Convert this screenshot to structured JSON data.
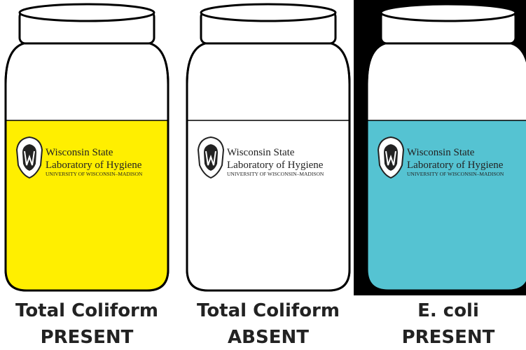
{
  "jars": [
    {
      "liquid_color": "#ffef00",
      "logo": {
        "line1": "Wisconsin State",
        "line2": "Laboratory of Hygiene",
        "line3": "UNIVERSITY OF WISCONSIN–MADISON"
      },
      "caption": [
        "Total Coliform",
        "PRESENT"
      ]
    },
    {
      "liquid_color": "#ffffff",
      "logo": {
        "line1": "Wisconsin State",
        "line2": "Laboratory of Hygiene",
        "line3": "UNIVERSITY OF WISCONSIN–MADISON"
      },
      "caption": [
        "Total Coliform",
        "ABSENT"
      ]
    },
    {
      "liquid_color": "#55c3d2",
      "logo": {
        "line1": "Wisconsin State",
        "line2": "Laboratory of Hygiene",
        "line3": "UNIVERSITY OF WISCONSIN–MADISON"
      },
      "caption": [
        "E. coli",
        "PRESENT"
      ],
      "dark_background": true
    }
  ]
}
